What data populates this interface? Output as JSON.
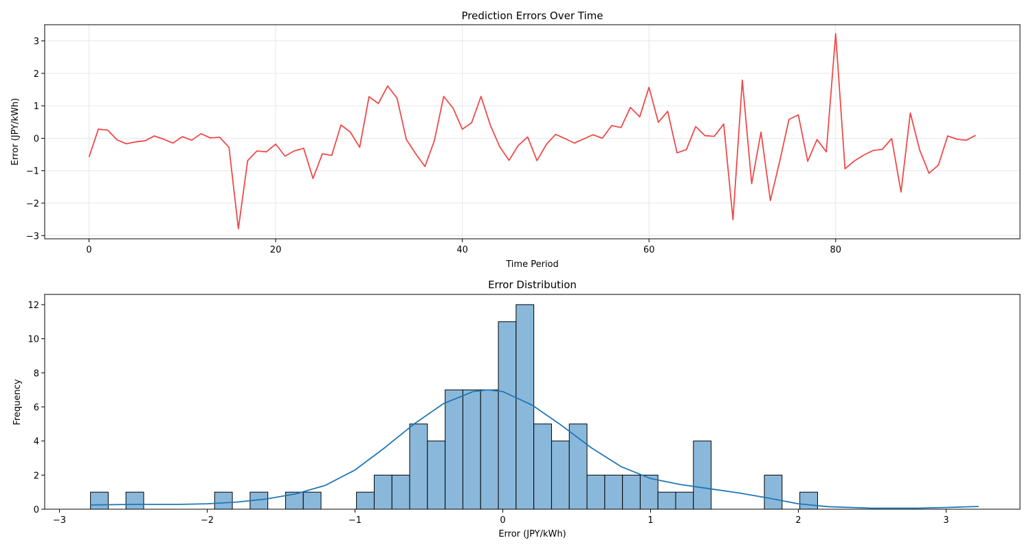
{
  "chart_data": [
    {
      "type": "line",
      "title": "Prediction Errors Over Time",
      "xlabel": "Time Period",
      "ylabel": "Error (JPY/kWh)",
      "xlim": [
        -4.75,
        99.75
      ],
      "ylim": [
        -3.1,
        3.5
      ],
      "xticks": [
        0,
        20,
        40,
        60,
        80
      ],
      "yticks": [
        -3,
        -2,
        -1,
        0,
        1,
        2,
        3
      ],
      "grid": true,
      "series": [
        {
          "color": "#f04848",
          "x": [
            0,
            1,
            2,
            3,
            4,
            5,
            6,
            7,
            8,
            9,
            10,
            11,
            12,
            13,
            14,
            15,
            16,
            17,
            18,
            19,
            20,
            21,
            22,
            23,
            24,
            25,
            26,
            27,
            28,
            29,
            30,
            31,
            32,
            33,
            34,
            35,
            36,
            37,
            38,
            39,
            40,
            41,
            42,
            43,
            44,
            45,
            46,
            47,
            48,
            49,
            50,
            51,
            52,
            53,
            54,
            55,
            56,
            57,
            58,
            59,
            60,
            61,
            62,
            63,
            64,
            65,
            66,
            67,
            68,
            69,
            70,
            71,
            72,
            73,
            74,
            75,
            76,
            77,
            78,
            79,
            80,
            81,
            82,
            83,
            84,
            85,
            86,
            87,
            88,
            89,
            90,
            91,
            92,
            93,
            94,
            95
          ],
          "y": [
            -0.58,
            0.28,
            0.25,
            -0.05,
            -0.17,
            -0.11,
            -0.08,
            0.07,
            -0.03,
            -0.15,
            0.05,
            -0.06,
            0.14,
            0.01,
            0.03,
            -0.28,
            -2.79,
            -0.69,
            -0.39,
            -0.42,
            -0.18,
            -0.55,
            -0.39,
            -0.31,
            -1.24,
            -0.48,
            -0.53,
            0.41,
            0.19,
            -0.28,
            1.28,
            1.07,
            1.61,
            1.24,
            -0.04,
            -0.48,
            -0.87,
            -0.08,
            1.29,
            0.93,
            0.28,
            0.48,
            1.29,
            0.4,
            -0.26,
            -0.68,
            -0.22,
            0.04,
            -0.69,
            -0.19,
            0.12,
            -0.01,
            -0.15,
            -0.02,
            0.11,
            0.0,
            0.39,
            0.33,
            0.95,
            0.66,
            1.57,
            0.49,
            0.83,
            -0.45,
            -0.35,
            0.36,
            0.08,
            0.06,
            0.44,
            -2.51,
            1.79,
            -1.4,
            0.19,
            -1.92,
            -0.72,
            0.58,
            0.72,
            -0.71,
            -0.04,
            -0.42,
            3.22,
            -0.94,
            -0.7,
            -0.52,
            -0.38,
            -0.34,
            -0.01,
            -1.66,
            0.78,
            -0.36,
            -1.08,
            -0.83,
            0.07,
            -0.03,
            -0.06,
            0.09
          ]
        }
      ]
    },
    {
      "type": "bar",
      "title": "Error Distribution",
      "xlabel": "Error (JPY/kWh)",
      "ylabel": "Frequency",
      "xlim": [
        -3.1,
        3.5
      ],
      "ylim": [
        0,
        12.6
      ],
      "xticks": [
        -3,
        -2,
        -1,
        0,
        1,
        2,
        3
      ],
      "yticks": [
        0,
        2,
        4,
        6,
        8,
        10,
        12
      ],
      "grid": false,
      "bar_color": "#8ab8db",
      "bar_edge": "#000000",
      "kde_color": "#1f77b4",
      "bin_start": -2.79,
      "bin_width": 0.12,
      "counts": [
        1,
        0,
        1,
        0,
        0,
        0,
        0,
        1,
        0,
        1,
        0,
        1,
        1,
        0,
        0,
        1,
        2,
        2,
        5,
        4,
        7,
        7,
        7,
        11,
        12,
        5,
        4,
        5,
        2,
        2,
        2,
        2,
        1,
        1,
        4,
        0,
        0,
        0,
        2,
        0,
        1,
        0,
        0,
        0,
        0,
        0,
        0,
        0,
        0,
        0
      ],
      "kde": {
        "x": [
          -2.79,
          -2.5,
          -2.2,
          -2.0,
          -1.8,
          -1.6,
          -1.4,
          -1.2,
          -1.0,
          -0.8,
          -0.6,
          -0.4,
          -0.2,
          -0.1,
          0.0,
          0.2,
          0.4,
          0.6,
          0.8,
          1.0,
          1.2,
          1.4,
          1.6,
          1.8,
          2.0,
          2.2,
          2.5,
          2.8,
          3.0,
          3.22
        ],
        "y": [
          0.25,
          0.28,
          0.28,
          0.32,
          0.42,
          0.6,
          0.9,
          1.4,
          2.3,
          3.6,
          5.0,
          6.2,
          6.9,
          7.0,
          6.9,
          6.1,
          4.9,
          3.6,
          2.5,
          1.8,
          1.45,
          1.2,
          0.95,
          0.65,
          0.32,
          0.15,
          0.06,
          0.06,
          0.1,
          0.16
        ]
      }
    }
  ]
}
